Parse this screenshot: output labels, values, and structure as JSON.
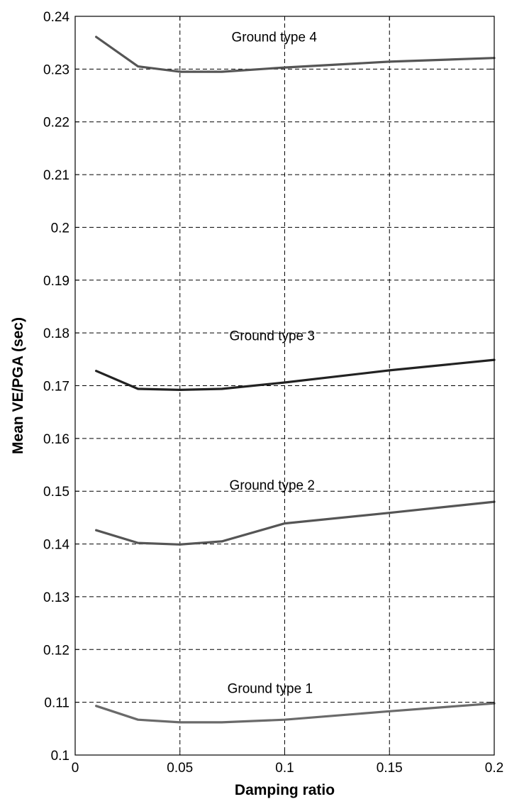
{
  "chart_data": {
    "type": "line",
    "title": "",
    "xlabel": "Damping ratio",
    "ylabel": "Mean VE/PGA (sec)",
    "xlim": [
      0,
      0.2
    ],
    "ylim": [
      0.1,
      0.24
    ],
    "grid": true,
    "xticks": [
      "0",
      "0.05",
      "0.1",
      "0.15",
      "0.2"
    ],
    "yticks": [
      "0.1",
      "0.11",
      "0.12",
      "0.13",
      "0.14",
      "0.15",
      "0.16",
      "0.17",
      "0.18",
      "0.19",
      "0.2",
      "0.21",
      "0.22",
      "0.23",
      "0.24"
    ],
    "x": [
      0.01,
      0.03,
      0.05,
      0.07,
      0.1,
      0.15,
      0.2
    ],
    "series": [
      {
        "values": [
          0.1093,
          0.1067,
          0.1062,
          0.1062,
          0.1067,
          0.1083,
          0.1098
        ],
        "color": "#6a6a6a"
      },
      {
        "values": [
          0.1426,
          0.1402,
          0.1399,
          0.1405,
          0.1439,
          0.1459,
          0.148
        ],
        "color": "#555555"
      },
      {
        "values": [
          0.1728,
          0.1694,
          0.1692,
          0.1694,
          0.1706,
          0.1729,
          0.1749
        ],
        "color": "#222222"
      },
      {
        "values": [
          0.2361,
          0.2305,
          0.2295,
          0.2295,
          0.2303,
          0.2314,
          0.2321
        ],
        "color": "#555555"
      }
    ],
    "annotations": [
      {
        "text": "Ground type 1",
        "x": 0.093,
        "y": 0.1118
      },
      {
        "text": "Ground type 2",
        "x": 0.094,
        "y": 0.1503
      },
      {
        "text": "Ground type 3",
        "x": 0.094,
        "y": 0.1786
      },
      {
        "text": "Ground type 4",
        "x": 0.095,
        "y": 0.2352
      }
    ]
  }
}
